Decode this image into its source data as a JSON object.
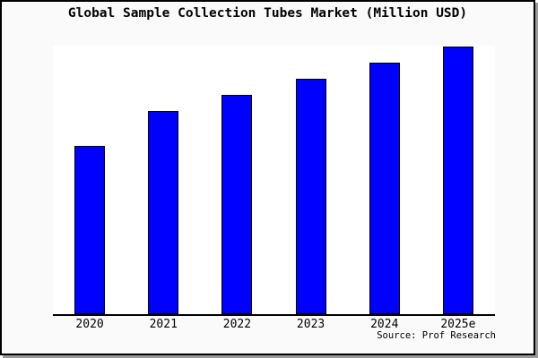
{
  "window": {
    "background_color": "#fafafa",
    "plot_background_color": "#ffffff",
    "frame_border_color": "#000000",
    "shadow_color": "#9a9a9a"
  },
  "chart_data": {
    "type": "bar",
    "title": "Global Sample Collection Tubes Market (Million USD)",
    "categories": [
      "2020",
      "2021",
      "2022",
      "2023",
      "2024",
      "2025e"
    ],
    "values_pct_of_max": [
      63,
      76,
      82,
      88,
      94,
      100
    ],
    "xlabel": "",
    "ylabel": "",
    "y_axis_visible": false,
    "y_tick_labels_visible": false,
    "gridlines": false,
    "legend_position": "none",
    "bar_color": "#0000ff",
    "bar_border_color": "#000000",
    "axis_line_color": "#000000",
    "source_note": "Source: Prof Research"
  }
}
